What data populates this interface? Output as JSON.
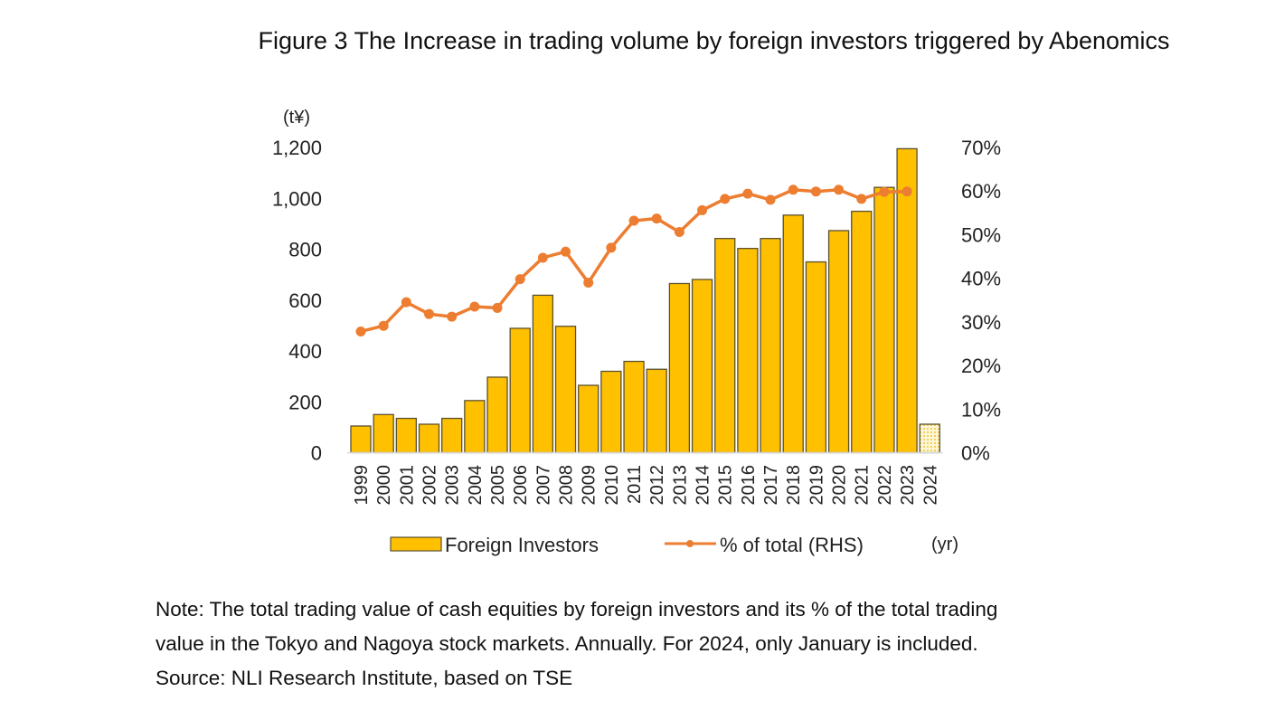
{
  "title": "Figure 3 The Increase in trading volume by foreign investors triggered by Abenomics",
  "note": {
    "line1": "Note: The total trading value of cash equities by foreign investors and its % of the total trading",
    "line2": "value in the Tokyo and Nagoya stock markets. Annually. For 2024, only January is included.",
    "line3": "Source: NLI Research Institute, based on TSE"
  },
  "chart_data": {
    "type": "bar+line",
    "categories": [
      "1999",
      "2000",
      "2001",
      "2002",
      "2003",
      "2004",
      "2005",
      "2006",
      "2007",
      "2008",
      "2009",
      "2010",
      "2011",
      "2012",
      "2013",
      "2014",
      "2015",
      "2016",
      "2017",
      "2018",
      "2019",
      "2020",
      "2021",
      "2022",
      "2023",
      "2024"
    ],
    "left_axis": {
      "unit_label": "(t¥)",
      "range": [
        0,
        1200
      ],
      "ticks": [
        "0",
        "200",
        "400",
        "600",
        "800",
        "1,000",
        "1,200"
      ],
      "tick_values": [
        0,
        200,
        400,
        600,
        800,
        1000,
        1200
      ]
    },
    "right_axis": {
      "range": [
        0,
        70
      ],
      "ticks": [
        "0%",
        "10%",
        "20%",
        "30%",
        "40%",
        "50%",
        "60%",
        "70%"
      ],
      "tick_values": [
        0,
        10,
        20,
        30,
        40,
        50,
        60,
        70
      ]
    },
    "x_unit_label": "(yr)",
    "grid": false,
    "legend_placement": "bottom",
    "series": [
      {
        "name": "Foreign Investors",
        "type": "bar",
        "axis": "left",
        "color": "#FFC000",
        "values": [
          105,
          150,
          135,
          112,
          135,
          205,
          297,
          489,
          619,
          497,
          265,
          320,
          359,
          328,
          665,
          681,
          842,
          803,
          842,
          934,
          750,
          873,
          949,
          1043,
          1195,
          112
        ],
        "partial_last_hatched": true
      },
      {
        "name": "% of total (RHS)",
        "type": "line",
        "axis": "right",
        "color": "#ED7D31",
        "values": [
          27.8,
          29.1,
          34.5,
          31.8,
          31.2,
          33.5,
          33.2,
          39.8,
          44.7,
          46.1,
          39.0,
          47.0,
          53.2,
          53.7,
          50.6,
          55.6,
          58.2,
          59.4,
          58.0,
          60.3,
          59.9,
          60.3,
          58.2,
          59.8,
          59.9,
          null
        ]
      }
    ]
  }
}
